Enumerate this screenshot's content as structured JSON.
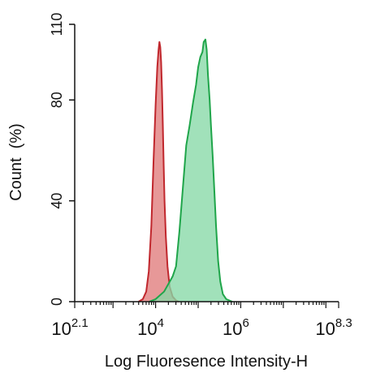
{
  "chart_data": {
    "type": "area",
    "title": "",
    "xlabel": "Log Fluoresence Intensity-H",
    "ylabel": "Count  (%)",
    "x_scale": "log10",
    "xlim": [
      2.1,
      8.3
    ],
    "ylim": [
      0,
      110
    ],
    "y_ticks": [
      0,
      40,
      80,
      110
    ],
    "x_tick_labels": [
      {
        "exponent": "2.1",
        "base": "10"
      },
      {
        "exponent": "4",
        "base": "10"
      },
      {
        "exponent": "6",
        "base": "10"
      },
      {
        "exponent": "8.3",
        "base": "10"
      }
    ],
    "grid": false,
    "legend": "none",
    "series": [
      {
        "color": "#c0272d",
        "fill": "#e07b7b",
        "x_log10": [
          3.6,
          3.7,
          3.78,
          3.84,
          3.9,
          3.95,
          4.0,
          4.04,
          4.07,
          4.09,
          4.11,
          4.13,
          4.15,
          4.17,
          4.19,
          4.21,
          4.24,
          4.28,
          4.33,
          4.4,
          4.48,
          4.55
        ],
        "y": [
          0,
          1,
          4,
          12,
          30,
          55,
          78,
          93,
          100,
          103,
          101,
          95,
          84,
          70,
          54,
          40,
          26,
          14,
          6,
          2,
          0.5,
          0
        ]
      },
      {
        "color": "#1fa54a",
        "fill": "#86d9a6",
        "x_log10": [
          3.85,
          4.0,
          4.2,
          4.4,
          4.48,
          4.56,
          4.64,
          4.72,
          4.8,
          4.88,
          4.95,
          5.0,
          5.05,
          5.1,
          5.13,
          5.17,
          5.2,
          5.23,
          5.27,
          5.3,
          5.34,
          5.38,
          5.42,
          5.47,
          5.52,
          5.58,
          5.66,
          5.8
        ],
        "y": [
          0,
          1,
          4,
          10,
          14,
          28,
          45,
          62,
          70,
          79,
          86,
          93,
          97,
          99,
          103,
          104,
          100,
          90,
          80,
          70,
          58,
          44,
          30,
          16,
          8,
          3,
          1,
          0
        ]
      }
    ]
  }
}
